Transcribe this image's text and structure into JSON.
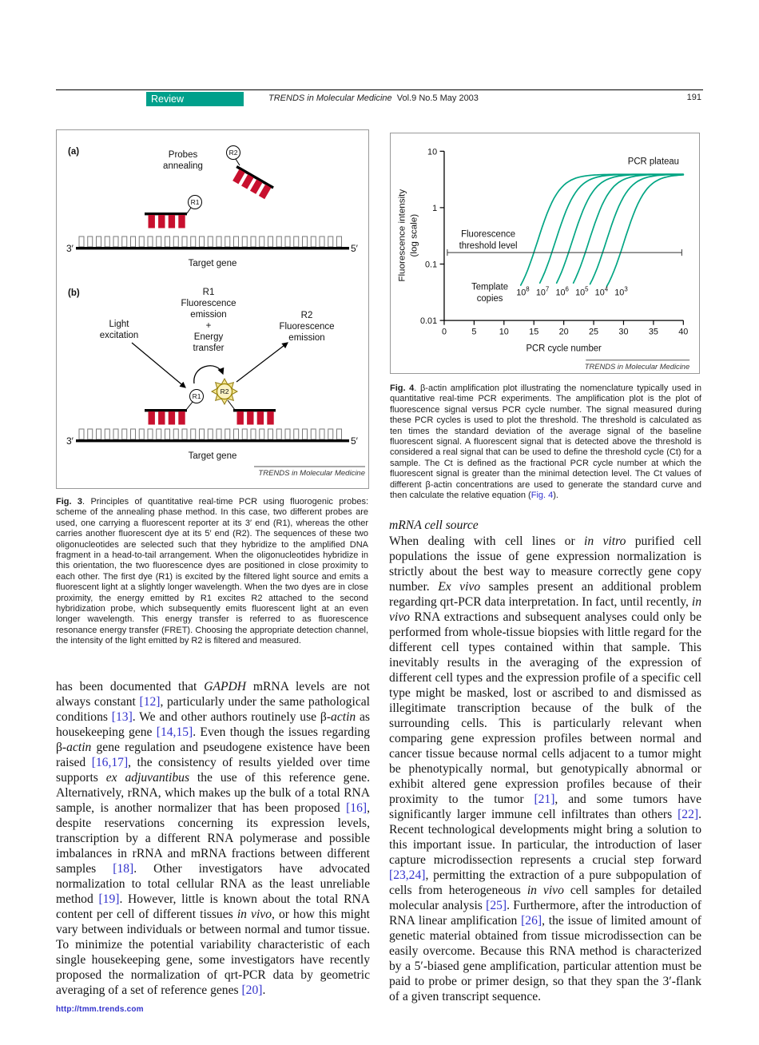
{
  "header": {
    "review_label": "Review",
    "journal_name": "TRENDS in Molecular Medicine",
    "issue_info": "Vol.9 No.5 May 2003",
    "page_number": "191"
  },
  "colors": {
    "teal_banner": "#00A08B",
    "curve_teal": "#00A583",
    "link_blue": "#3333CC",
    "probe_red": "#C8102E"
  },
  "fig3": {
    "panel_a": {
      "label": "(a)",
      "annealing_line1": "Probes",
      "annealing_line2": "annealing",
      "r1": "R1",
      "r2": "R2",
      "three_prime": "3′",
      "five_prime": "5′",
      "target_gene": "Target gene"
    },
    "panel_b": {
      "label": "(b)",
      "light_line1": "Light",
      "light_line2": "excitation",
      "r1_block": [
        "R1",
        "Fluorescence",
        "emission",
        "+",
        "Energy",
        "transfer"
      ],
      "r2_block": [
        "R2",
        "Fluorescence",
        "emission"
      ],
      "r1": "R1",
      "r2": "R2",
      "three_prime": "3′",
      "five_prime": "5′",
      "target_gene": "Target gene"
    },
    "attribution": "TRENDS in Molecular Medicine",
    "caption": [
      {
        "t": "Fig. 3",
        "s": "b"
      },
      {
        "t": ". Principles of quantitative real-time PCR using fluorogenic probes: scheme of the annealing phase method. In this case, two different probes are used, one carrying a fluorescent reporter at its 3′ end (R1), whereas the other carries another fluorescent dye at its 5′ end (R2). The sequences of these two oligonucleotides are selected such that they hybridize to the amplified DNA fragment in a head-to-tail arrangement. When the oligonucleotides hybridize in this orientation, the two fluorescence dyes are positioned in close proximity to each other. The first dye (R1) is excited by the filtered light source and emits a fluorescent light at a slightly longer wavelength. When the two dyes are in close proximity, the energy emitted by R1 excites R2 attached to the second hybridization probe, which subsequently emits fluorescent light at an even longer wavelength. This energy transfer is referred to as fluorescence resonance energy transfer (FRET). Choosing the appropriate detection channel, the intensity of the light emitted by R2 is filtered and measured.",
        "s": ""
      }
    ]
  },
  "fig4": {
    "attribution": "TRENDS in Molecular Medicine",
    "caption": [
      {
        "t": "Fig. 4",
        "s": "b"
      },
      {
        "t": ". β-actin amplification plot illustrating the nomenclature typically used in quantitative real-time PCR experiments. The amplification plot is the plot of fluorescence signal versus PCR cycle number. The signal measured during these PCR cycles is used to plot the threshold. The threshold is calculated as ten times the standard deviation of the average signal of the baseline fluorescent signal. A fluorescent signal that is detected above the threshold is considered a real signal that can be used to define the threshold cycle (Ct) for a sample. The Ct is defined as the fractional PCR cycle number at which the fluorescent signal is greater than the minimal detection level. The Ct values of different β-actin concentrations are used to generate the standard curve and then calculate the relative equation (",
        "s": ""
      },
      {
        "t": "Fig. 4",
        "s": "a"
      },
      {
        "t": ").",
        "s": ""
      }
    ]
  },
  "chart_data": {
    "type": "line",
    "title": "",
    "xlabel": "PCR cycle number",
    "ylabel_line1": "Fluorescence intensity",
    "ylabel_line2": "(log scale)",
    "x_ticks": [
      0,
      5,
      10,
      15,
      20,
      25,
      30,
      35,
      40
    ],
    "y_ticks": [
      "10",
      "1",
      "0.1",
      "0.01"
    ],
    "xlim": [
      0,
      40
    ],
    "ylim": [
      0.01,
      10
    ],
    "y_scale": "log",
    "grid": false,
    "legend_position": "none",
    "plateau_label": "PCR plateau",
    "copies_label_line1": "Template",
    "copies_label_line2": "copies",
    "threshold": {
      "label_line1": "Fluorescence",
      "label_line2": "threshold level",
      "value": 0.16
    },
    "plateau_value": 3.9,
    "baseline_value": 0.04,
    "series": [
      {
        "template_copies": "10^8",
        "base": "10",
        "exp": "8",
        "ct": 15.0
      },
      {
        "template_copies": "10^7",
        "base": "10",
        "exp": "7",
        "ct": 18.0
      },
      {
        "template_copies": "10^6",
        "base": "10",
        "exp": "6",
        "ct": 20.8
      },
      {
        "template_copies": "10^5",
        "base": "10",
        "exp": "5",
        "ct": 23.6
      },
      {
        "template_copies": "10^4",
        "base": "10",
        "exp": "4",
        "ct": 26.5
      },
      {
        "template_copies": "10^3",
        "base": "10",
        "exp": "3",
        "ct": 29.5
      }
    ]
  },
  "body": {
    "left_paragraph": [
      {
        "t": "has been documented that ",
        "s": ""
      },
      {
        "t": "GAPDH",
        "s": "i"
      },
      {
        "t": " mRNA levels are not always constant ",
        "s": ""
      },
      {
        "t": "[12]",
        "s": "a"
      },
      {
        "t": ", particularly under the same pathological conditions ",
        "s": ""
      },
      {
        "t": "[13]",
        "s": "a"
      },
      {
        "t": ". We and other authors routinely use β-",
        "s": ""
      },
      {
        "t": "actin",
        "s": "i"
      },
      {
        "t": " as housekeeping gene ",
        "s": ""
      },
      {
        "t": "[14,15]",
        "s": "a"
      },
      {
        "t": ". Even though the issues regarding β-",
        "s": ""
      },
      {
        "t": "actin",
        "s": "i"
      },
      {
        "t": " gene regulation and pseudogene existence have been raised ",
        "s": ""
      },
      {
        "t": "[16,17]",
        "s": "a"
      },
      {
        "t": ", the consistency of results yielded over time supports ",
        "s": ""
      },
      {
        "t": "ex adjuvantibus",
        "s": "i"
      },
      {
        "t": " the use of this reference gene. Alternatively, rRNA, which makes up the bulk of a total RNA sample, is another normalizer that has been proposed ",
        "s": ""
      },
      {
        "t": "[16]",
        "s": "a"
      },
      {
        "t": ", despite reservations concerning its expression levels, transcription by a different RNA polymerase and possible imbalances in rRNA and mRNA fractions between different samples ",
        "s": ""
      },
      {
        "t": "[18]",
        "s": "a"
      },
      {
        "t": ". Other investigators have advocated normalization to total cellular RNA as the least unreliable method ",
        "s": ""
      },
      {
        "t": "[19]",
        "s": "a"
      },
      {
        "t": ". However, little is known about the total RNA content per cell of different tissues ",
        "s": ""
      },
      {
        "t": "in vivo",
        "s": "i"
      },
      {
        "t": ", or how this might vary between individuals or between normal and tumor tissue. To minimize the potential variability characteristic of each single housekeeping gene, some investigators have recently proposed the normalization of qrt-PCR data by geometric averaging of a set of reference genes ",
        "s": ""
      },
      {
        "t": "[20]",
        "s": "a"
      },
      {
        "t": ".",
        "s": ""
      }
    ],
    "right_heading": "mRNA cell source",
    "right_paragraph": [
      {
        "t": "When dealing with cell lines or ",
        "s": ""
      },
      {
        "t": "in vitro",
        "s": "i"
      },
      {
        "t": " purified cell populations the issue of gene expression normalization is strictly about the best way to measure correctly gene copy number. ",
        "s": ""
      },
      {
        "t": "Ex vivo",
        "s": "i"
      },
      {
        "t": " samples present an additional problem regarding qrt-PCR data interpretation. In fact, until recently, ",
        "s": ""
      },
      {
        "t": "in vivo",
        "s": "i"
      },
      {
        "t": " RNA extractions and subsequent analyses could only be performed from whole-tissue biopsies with little regard for the different cell types contained within that sample. This inevitably results in the averaging of the expression of different cell types and the expression profile of a specific cell type might be masked, lost or ascribed to and dismissed as illegitimate transcription because of the bulk of the surrounding cells. This is particularly relevant when comparing gene expression profiles between normal and cancer tissue because normal cells adjacent to a tumor might be phenotypically normal, but genotypically abnormal or exhibit altered gene expression profiles because of their proximity to the tumor ",
        "s": ""
      },
      {
        "t": "[21]",
        "s": "a"
      },
      {
        "t": ", and some tumors have significantly larger immune cell infiltrates than others ",
        "s": ""
      },
      {
        "t": "[22]",
        "s": "a"
      },
      {
        "t": ". Recent technological developments might bring a solution to this important issue. In particular, the introduction of laser capture microdissection represents a crucial step forward ",
        "s": ""
      },
      {
        "t": "[23,24]",
        "s": "a"
      },
      {
        "t": ", permitting the extraction of a pure subpopulation of cells from heterogeneous ",
        "s": ""
      },
      {
        "t": "in vivo",
        "s": "i"
      },
      {
        "t": " cell samples for detailed molecular analysis ",
        "s": ""
      },
      {
        "t": "[25]",
        "s": "a"
      },
      {
        "t": ". Furthermore, after the introduction of RNA linear amplification ",
        "s": ""
      },
      {
        "t": "[26]",
        "s": "a"
      },
      {
        "t": ", the issue of limited amount of genetic material obtained from tissue microdissection can be easily overcome. Because this RNA method is characterized by a 5′-biased gene amplification, particular attention must be paid to probe or primer design, so that they span the 3′-flank of a given transcript sequence.",
        "s": ""
      }
    ]
  },
  "footer": {
    "url": "http://tmm.trends.com"
  }
}
